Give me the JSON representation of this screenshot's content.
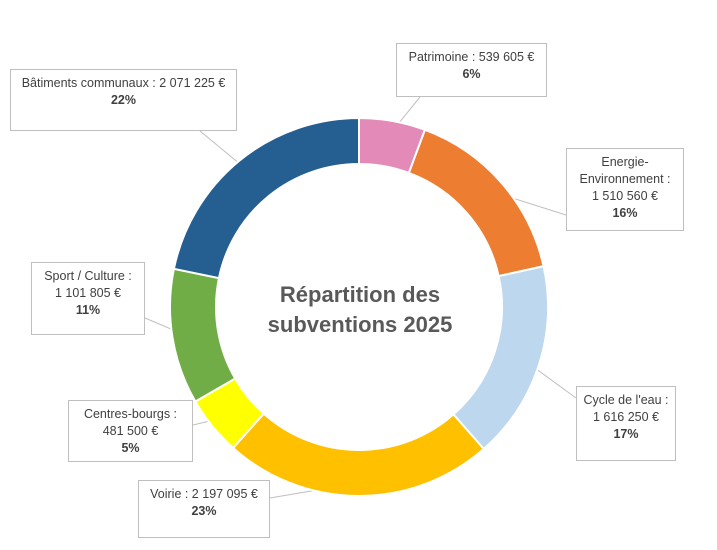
{
  "chart_data": {
    "type": "doughnut",
    "title": "Répartition des subventions 2025",
    "title_lines": [
      "Répartition des",
      "subventions 2025"
    ],
    "slices": [
      {
        "label": "Patrimoine",
        "value": 539605,
        "value_text": "539 605 €",
        "percent_text": "6%",
        "color": "#E38AB8"
      },
      {
        "label": "Energie-Environnement",
        "value": 1510560,
        "value_text": "1 510 560 €",
        "percent_text": "16%",
        "color": "#ED7D31"
      },
      {
        "label": "Cycle de l'eau",
        "value": 1616250,
        "value_text": "1 616 250 €",
        "percent_text": "17%",
        "color": "#BDD7EE"
      },
      {
        "label": "Voirie",
        "value": 2197095,
        "value_text": "2 197 095 €",
        "percent_text": "23%",
        "color": "#FFC000"
      },
      {
        "label": "Centres-bourgs",
        "value": 481500,
        "value_text": "481 500 €",
        "percent_text": "5%",
        "color": "#FFFF00"
      },
      {
        "label": "Sport / Culture",
        "value": 1101805,
        "value_text": "1 101 805 €",
        "percent_text": "11%",
        "color": "#70AD47"
      },
      {
        "label": "Bâtiments communaux",
        "value": 2071225,
        "value_text": "2 071 225 €",
        "percent_text": "22%",
        "color": "#255E91"
      }
    ],
    "callouts": [
      {
        "line1": "Patrimoine : 539 605 €",
        "line2": "",
        "line3": "",
        "pct": "6%"
      },
      {
        "line1": "Energie-",
        "line2": "Environnement :",
        "line3": "1 510 560 €",
        "pct": "16%"
      },
      {
        "line1": "Cycle de l'eau :",
        "line2": "1 616 250 €",
        "line3": "",
        "pct": "17%"
      },
      {
        "line1": "Voirie : 2 197 095 €",
        "line2": "",
        "line3": "",
        "pct": "23%"
      },
      {
        "line1": "Centres-bourgs :",
        "line2": "481 500 €",
        "line3": "",
        "pct": "5%"
      },
      {
        "line1": "Sport / Culture :",
        "line2": "1 101 805 €",
        "line3": "",
        "pct": "11%"
      },
      {
        "line1": "Bâtiments communaux : 2 071 225 €",
        "line2": "",
        "line3": "",
        "pct": "22%"
      }
    ],
    "legend": "none",
    "colors": {
      "border": "#ffffff",
      "callout_border": "#bfbfbf",
      "leader": "#bfbfbf",
      "title": "#595959"
    }
  }
}
